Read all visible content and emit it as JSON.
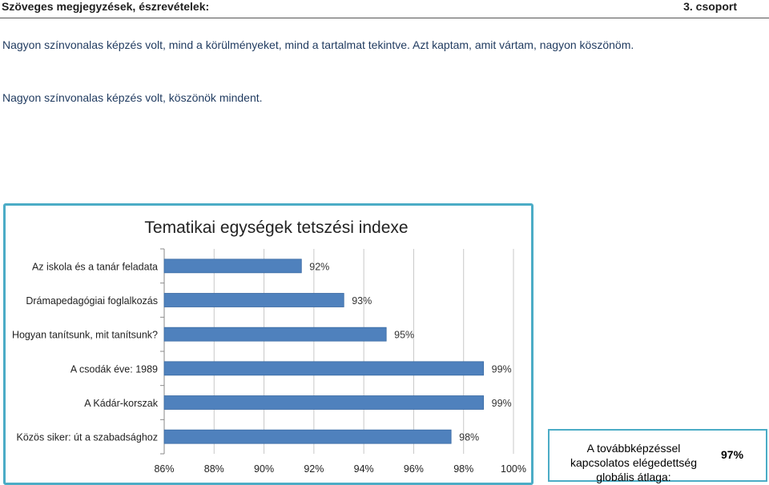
{
  "header": {
    "title": "Szöveges megjegyzések, észrevételek:",
    "group": "3. csoport"
  },
  "comments": [
    "Nagyon színvonalas képzés volt, mind a körülményeket, mind a tartalmat tekintve. Azt kaptam, amit vártam, nagyon köszönöm.",
    "Nagyon színvonalas képzés volt, köszönök mindent."
  ],
  "chart_data": {
    "type": "bar",
    "orientation": "horizontal",
    "title": "Tematikai egységek tetszési indexe",
    "categories": [
      "Az iskola és a tanár feladata",
      "Drámapedagógiai foglalkozás",
      "Hogyan tanítsunk, mit tanítsunk?",
      "A csodák éve: 1989",
      "A Kádár-korszak",
      "Közös siker: út a szabadsághoz"
    ],
    "values": [
      91.5,
      93.2,
      94.9,
      98.8,
      98.8,
      97.5
    ],
    "data_labels": [
      "92%",
      "93%",
      "95%",
      "99%",
      "99%",
      "98%"
    ],
    "xlim": [
      86,
      100
    ],
    "x_ticks": [
      86,
      88,
      90,
      92,
      94,
      96,
      98,
      100
    ],
    "x_tick_labels": [
      "86%",
      "88%",
      "90%",
      "92%",
      "94%",
      "96%",
      "98%",
      "100%"
    ],
    "grid": true,
    "bar_color": "#4f81bd"
  },
  "summary": {
    "label": "A továbbképzéssel kapcsolatos elégedettség globális átlaga:",
    "value": "97%"
  }
}
